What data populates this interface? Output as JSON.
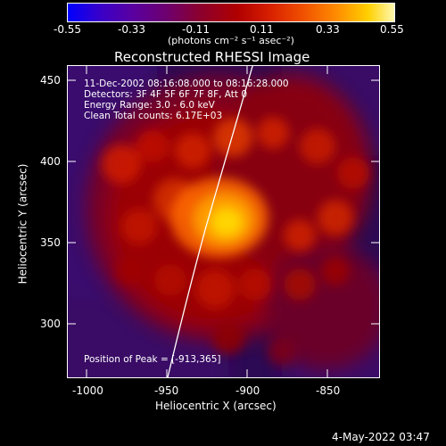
{
  "colorbar": {
    "tick_labels": [
      "-0.55",
      "-0.33",
      "-0.11",
      "0.11",
      "0.33",
      "0.55"
    ],
    "units_label": "(photons cm⁻² s⁻¹ asec⁻²)"
  },
  "plot": {
    "title": "Reconstructed RHESSI Image",
    "info_lines": [
      "11-Dec-2002 08:16:08.000 to 08:16:28.000",
      "Detectors: 3F 4F 5F 6F 7F 8F, Att 0",
      "Energy Range: 3.0 - 6.0 keV",
      "Clean     Total counts: 6.17E+03"
    ],
    "peak_label": "Position of Peak = [-913,365]",
    "x_axis": {
      "label": "Heliocentric X (arcsec)",
      "tick_labels": [
        "-1000",
        "-950",
        "-900",
        "-850"
      ]
    },
    "y_axis": {
      "label": "Heliocentric Y (arcsec)",
      "tick_labels": [
        "450",
        "400",
        "350",
        "300"
      ]
    }
  },
  "footer": {
    "date_label": "4-May-2022 03:47"
  }
}
